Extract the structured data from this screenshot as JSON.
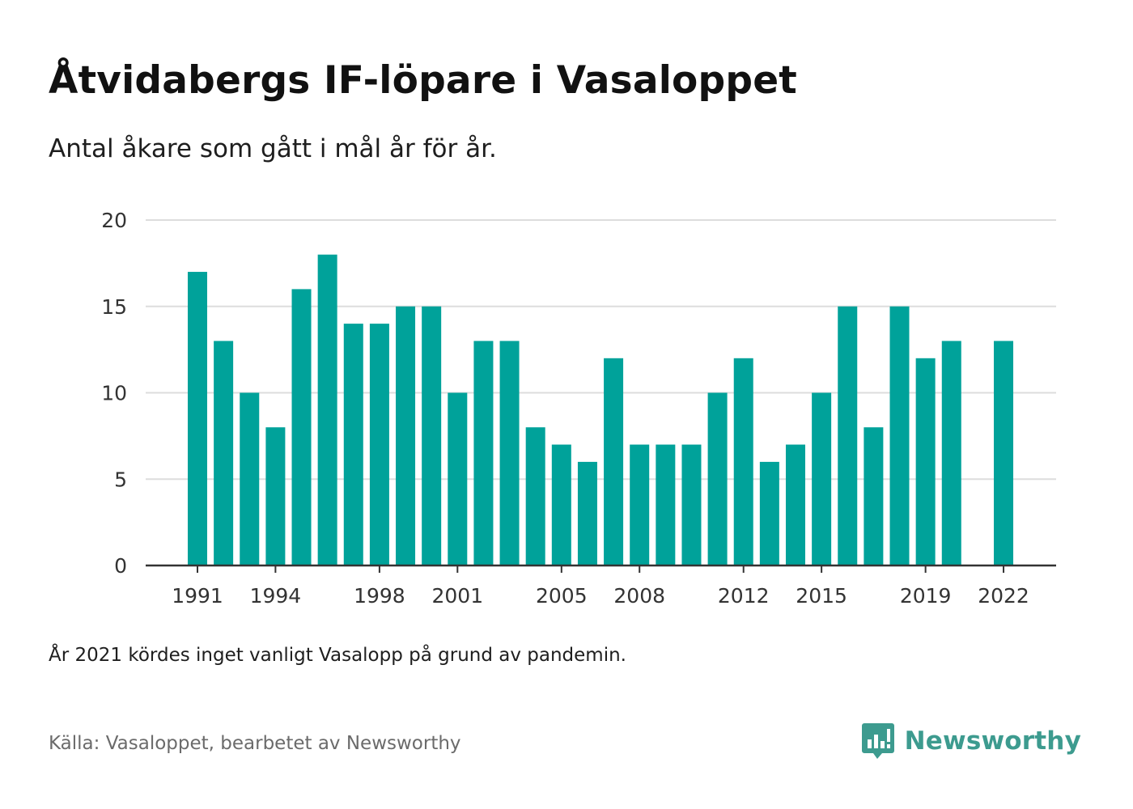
{
  "title": "Åtvidabergs IF-löpare i Vasaloppet",
  "subtitle": "Antal åkare som gått i mål år för år.",
  "note": "År 2021 kördes inget vanligt Vasalopp på grund av pandemin.",
  "source": "Källa: Vasaloppet, bearbetet av Newsworthy",
  "brand": {
    "name": "Newsworthy",
    "logo_icon": "bar-chart-speech-bubble-icon"
  },
  "colors": {
    "bar": "#00a29a",
    "grid": "#dddddd",
    "axis": "#333333",
    "brand": "#3d9b8f"
  },
  "chart_data": {
    "type": "bar",
    "title": "Åtvidabergs IF-löpare i Vasaloppet",
    "subtitle": "Antal åkare som gått i mål år för år.",
    "categories": [
      1991,
      1992,
      1993,
      1994,
      1995,
      1996,
      1997,
      1998,
      1999,
      2000,
      2001,
      2002,
      2003,
      2004,
      2005,
      2006,
      2007,
      2008,
      2009,
      2010,
      2011,
      2012,
      2013,
      2014,
      2015,
      2016,
      2017,
      2018,
      2019,
      2020,
      2021,
      2022
    ],
    "values": [
      17,
      13,
      10,
      8,
      16,
      18,
      14,
      14,
      15,
      15,
      10,
      13,
      13,
      8,
      7,
      6,
      12,
      7,
      7,
      7,
      10,
      12,
      6,
      7,
      10,
      15,
      8,
      15,
      12,
      13,
      null,
      13
    ],
    "x_tick_labels": [
      "1991",
      "1994",
      "1998",
      "2001",
      "2005",
      "2008",
      "2012",
      "2015",
      "2019",
      "2022"
    ],
    "y_ticks": [
      0,
      5,
      10,
      15,
      20
    ],
    "ylim": [
      0,
      20
    ],
    "xlabel": "",
    "ylabel": "",
    "grid": true,
    "legend": "none"
  }
}
